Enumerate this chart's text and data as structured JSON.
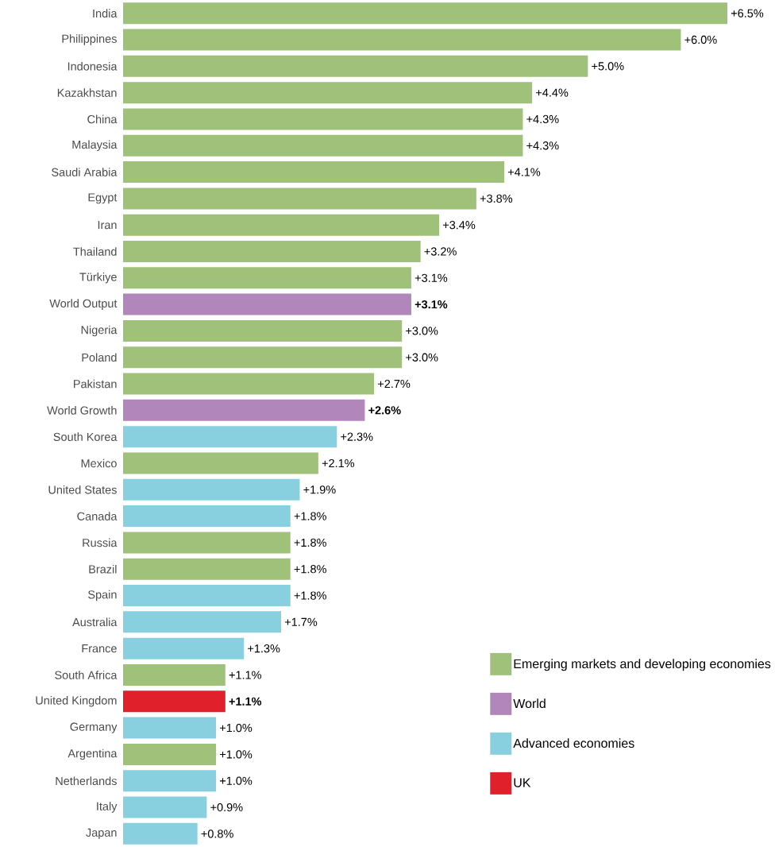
{
  "chart_data": {
    "type": "bar",
    "orientation": "horizontal",
    "legend": "bottom right",
    "categories": [
      "India",
      "Philippines",
      "Indonesia",
      "Kazakhstan",
      "China",
      "Malaysia",
      "Saudi Arabia",
      "Egypt",
      "Iran",
      "Thailand",
      "Türkiye",
      "World Output",
      "Nigeria",
      "Poland",
      "Pakistan",
      "World Growth",
      "South Korea",
      "Mexico",
      "United States",
      "Canada",
      "Russia",
      "Brazil",
      "Spain",
      "Australia",
      "France",
      "South Africa",
      "United Kingdom",
      "Germany",
      "Argentina",
      "Netherlands",
      "Italy",
      "Japan"
    ],
    "series": [
      {
        "name": "Emerging markets and developing economies",
        "color": "#9fc17a",
        "values": [
          6.5,
          6.0,
          5.0,
          4.4,
          4.3,
          4.3,
          4.1,
          3.8,
          3.4,
          3.2,
          3.1,
          null,
          3.0,
          3.0,
          2.7,
          null,
          null,
          2.1,
          null,
          null,
          1.8,
          1.8,
          null,
          null,
          null,
          1.1,
          null,
          null,
          1.0,
          null,
          null,
          null
        ],
        "value_labels": [
          "+6.5%",
          "+6.0%",
          "+5.0%",
          "+4.4%",
          "+4.3%",
          "+4.3%",
          "+4.1%",
          "+3.8%",
          "+3.4%",
          "+3.2%",
          "+3.1%",
          null,
          "+3.0%",
          "+3.0%",
          "+2.7%",
          null,
          null,
          "+2.1%",
          null,
          null,
          "+1.8%",
          "+1.8%",
          null,
          null,
          null,
          "+1.1%",
          null,
          null,
          "+1.0%",
          null,
          null,
          null
        ]
      },
      {
        "name": "World",
        "color": "#b086bb",
        "values": [
          null,
          null,
          null,
          null,
          null,
          null,
          null,
          null,
          null,
          null,
          null,
          3.1,
          null,
          null,
          null,
          2.6,
          null,
          null,
          null,
          null,
          null,
          null,
          null,
          null,
          null,
          null,
          null,
          null,
          null,
          null,
          null,
          null
        ],
        "value_labels": [
          null,
          null,
          null,
          null,
          null,
          null,
          null,
          null,
          null,
          null,
          null,
          "**+3.1%**",
          null,
          null,
          null,
          "**+2.6%**",
          null,
          null,
          null,
          null,
          null,
          null,
          null,
          null,
          null,
          null,
          null,
          null,
          null,
          null,
          null,
          null
        ]
      },
      {
        "name": "Advanced economies",
        "color": "#88d0e0",
        "values": [
          null,
          null,
          null,
          null,
          null,
          null,
          null,
          null,
          null,
          null,
          null,
          null,
          null,
          null,
          null,
          null,
          2.3,
          null,
          1.9,
          1.8,
          null,
          null,
          1.8,
          1.7,
          1.3,
          null,
          null,
          1.0,
          null,
          1.0,
          0.9,
          0.8
        ],
        "value_labels": [
          null,
          null,
          null,
          null,
          null,
          null,
          null,
          null,
          null,
          null,
          null,
          null,
          null,
          null,
          null,
          null,
          "+2.3%",
          null,
          "+1.9%",
          "+1.8%",
          null,
          null,
          "+1.8%",
          "+1.7%",
          "+1.3%",
          null,
          null,
          "+1.0%",
          null,
          "+1.0%",
          "+0.9%",
          "+0.8%"
        ]
      },
      {
        "name": "UK",
        "color": "#e0202a",
        "values": [
          null,
          null,
          null,
          null,
          null,
          null,
          null,
          null,
          null,
          null,
          null,
          null,
          null,
          null,
          null,
          null,
          null,
          null,
          null,
          null,
          null,
          null,
          null,
          null,
          null,
          null,
          1.1,
          null,
          null,
          null,
          null,
          null
        ],
        "value_labels": [
          null,
          null,
          null,
          null,
          null,
          null,
          null,
          null,
          null,
          null,
          null,
          null,
          null,
          null,
          null,
          null,
          null,
          null,
          null,
          null,
          null,
          null,
          null,
          null,
          null,
          null,
          "**+1.1%**",
          null,
          null,
          null,
          null,
          null
        ]
      }
    ]
  }
}
